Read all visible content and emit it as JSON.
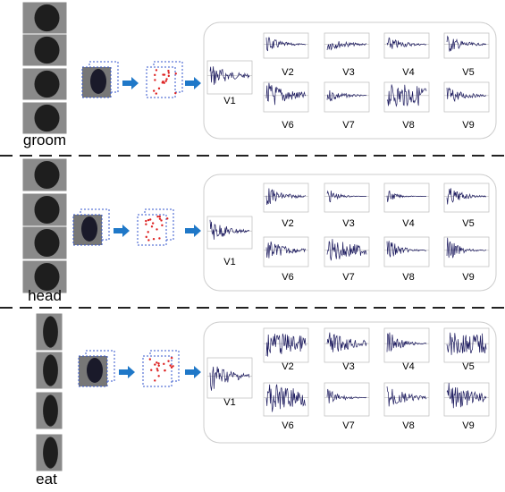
{
  "rows": [
    {
      "label": "groom",
      "views": [
        "V1",
        "V2",
        "V3",
        "V4",
        "V5",
        "V6",
        "V7",
        "V8",
        "V9"
      ]
    },
    {
      "label": "head",
      "views": [
        "V1",
        "V2",
        "V3",
        "V4",
        "V5",
        "V6",
        "V7",
        "V8",
        "V9"
      ]
    },
    {
      "label": "eat",
      "views": [
        "V1",
        "V2",
        "V3",
        "V4",
        "V5",
        "V6",
        "V7",
        "V8",
        "V9"
      ]
    }
  ]
}
